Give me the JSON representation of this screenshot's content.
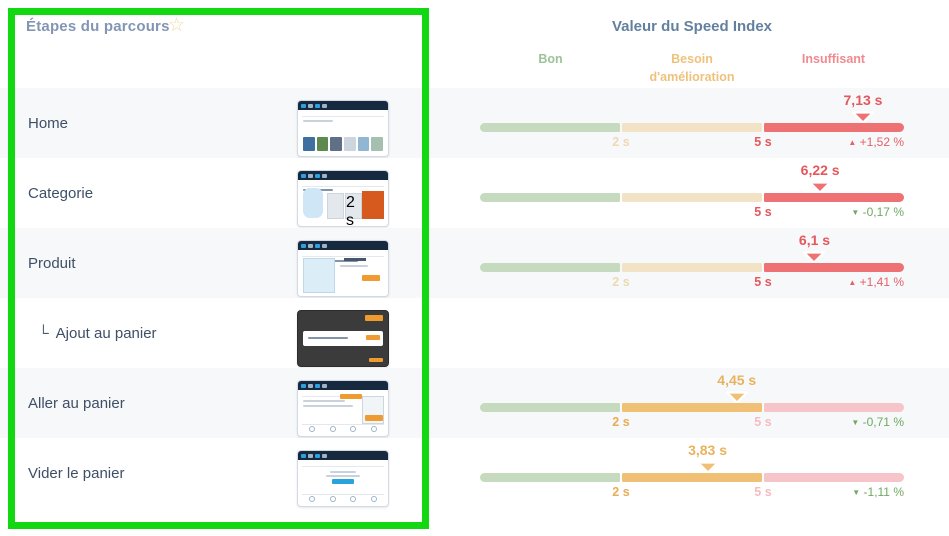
{
  "header": {
    "left_title": "Étapes du parcours",
    "star_icon": "☆",
    "right_title": "Valeur du Speed Index",
    "zones": [
      {
        "label": "Bon",
        "color": "#9dc398"
      },
      {
        "label": "Besoin d'amélioration",
        "color": "#eec27c"
      },
      {
        "label": "Insuffisant",
        "color": "#f18a90"
      }
    ]
  },
  "scale": {
    "tick1": "2 s",
    "tick2": "5 s",
    "good_max_s": 2,
    "improve_max_s": 5,
    "axis_max_s": 8
  },
  "sub_prefix": "└",
  "colors": {
    "good_muted": "#c5dabe",
    "improve_muted": "#f2e3c6",
    "bad_muted": "#f5c5c9",
    "bad_active": "#ee7173",
    "improve_active": "#efc076",
    "annotation_green": "#12d812"
  },
  "rows": [
    {
      "label": "Home",
      "sub": false,
      "thumb": "home",
      "speed_index": 7.13,
      "value_label": "7,13 s",
      "zone": "red",
      "change": {
        "direction": "up",
        "label": "+1,52 %"
      }
    },
    {
      "label": "Categorie",
      "sub": false,
      "thumb": "category",
      "speed_index": 6.22,
      "value_label": "6,22 s",
      "zone": "red",
      "change": {
        "direction": "down",
        "label": "-0,17 %"
      }
    },
    {
      "label": "Produit",
      "sub": false,
      "thumb": "product",
      "speed_index": 6.1,
      "value_label": "6,1 s",
      "zone": "red",
      "change": {
        "direction": "up",
        "label": "+1,41 %"
      }
    },
    {
      "label": "Ajout au panier",
      "sub": true,
      "thumb": "modal",
      "speed_index": null
    },
    {
      "label": "Aller au panier",
      "sub": false,
      "thumb": "cart",
      "speed_index": 4.45,
      "value_label": "4,45 s",
      "zone": "orange",
      "change": {
        "direction": "down",
        "label": "-0,71 %"
      }
    },
    {
      "label": "Vider le panier",
      "sub": false,
      "thumb": "empty-cart",
      "speed_index": 3.83,
      "value_label": "3,83 s",
      "zone": "orange",
      "change": {
        "direction": "down",
        "label": "-1,11 %"
      }
    }
  ]
}
